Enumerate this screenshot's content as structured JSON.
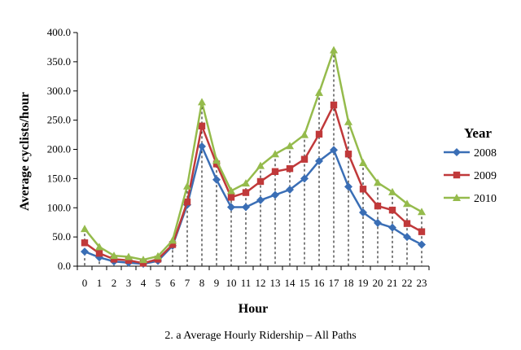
{
  "chart_data": {
    "type": "line",
    "caption": "2. a Average Hourly Ridership – All Paths",
    "xlabel": "Hour",
    "ylabel": "Average cyclists/hour",
    "x": [
      0,
      1,
      2,
      3,
      4,
      5,
      6,
      7,
      8,
      9,
      10,
      11,
      12,
      13,
      14,
      15,
      16,
      17,
      18,
      19,
      20,
      21,
      22,
      23
    ],
    "ylim": [
      0,
      400
    ],
    "yticks": [
      "0.0",
      "50.0",
      "100.0",
      "150.0",
      "200.0",
      "250.0",
      "300.0",
      "350.0",
      "400.0"
    ],
    "ytick_values": [
      0,
      50,
      100,
      150,
      200,
      250,
      300,
      350,
      400
    ],
    "drop_lines": true,
    "grid": false,
    "legend": {
      "title": "Year",
      "placement": "right"
    },
    "series": [
      {
        "name": "2008",
        "color": "#3a6eb5",
        "marker": "diamond",
        "values": [
          25,
          15,
          8,
          6,
          4,
          9,
          35,
          105,
          205,
          148,
          101,
          101,
          113,
          122,
          131,
          150,
          180,
          199,
          136,
          92,
          74,
          66,
          50,
          37
        ]
      },
      {
        "name": "2009",
        "color": "#c0393a",
        "marker": "square",
        "values": [
          40,
          22,
          12,
          10,
          5,
          12,
          37,
          110,
          240,
          175,
          118,
          126,
          145,
          162,
          167,
          183,
          226,
          276,
          192,
          132,
          103,
          96,
          73,
          59
        ]
      },
      {
        "name": "2010",
        "color": "#95bb4c",
        "marker": "triangle",
        "values": [
          64,
          33,
          18,
          16,
          11,
          17,
          44,
          137,
          281,
          181,
          129,
          142,
          172,
          192,
          206,
          225,
          297,
          370,
          247,
          177,
          143,
          127,
          107,
          93
        ]
      }
    ]
  }
}
